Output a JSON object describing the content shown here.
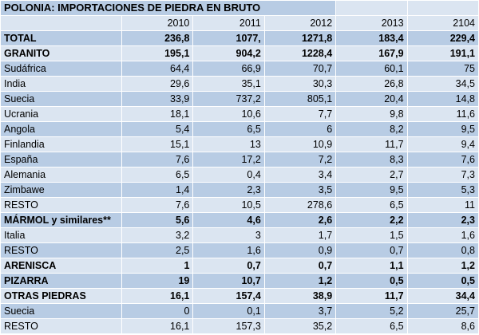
{
  "title": "POLONIA: IMPORTACIONES DE PIEDRA EN BRUTO",
  "columns": [
    "2010",
    "2011",
    "2012",
    "2013",
    "2104"
  ],
  "rows": [
    {
      "label": "TOTAL",
      "bold": true,
      "values": [
        "236,8",
        "1077,",
        "1271,8",
        "183,4",
        "229,4"
      ]
    },
    {
      "label": "GRANITO",
      "bold": true,
      "values": [
        "195,1",
        "904,2",
        "1228,4",
        "167,9",
        "191,1"
      ]
    },
    {
      "label": "Sudáfrica",
      "bold": false,
      "values": [
        "64,4",
        "66,9",
        "70,7",
        "60,1",
        "75"
      ]
    },
    {
      "label": "India",
      "bold": false,
      "values": [
        "29,6",
        "35,1",
        "30,3",
        "26,8",
        "34,5"
      ]
    },
    {
      "label": "Suecia",
      "bold": false,
      "values": [
        "33,9",
        "737,2",
        "805,1",
        "20,4",
        "14,8"
      ]
    },
    {
      "label": "Ucrania",
      "bold": false,
      "values": [
        "18,1",
        "10,6",
        "7,7",
        "9,8",
        "11,6"
      ]
    },
    {
      "label": "Angola",
      "bold": false,
      "values": [
        "5,4",
        "6,5",
        "6",
        "8,2",
        "9,5"
      ]
    },
    {
      "label": "Finlandia",
      "bold": false,
      "values": [
        "15,1",
        "13",
        "10,9",
        "11,7",
        "9,4"
      ]
    },
    {
      "label": "España",
      "bold": false,
      "values": [
        "7,6",
        "17,2",
        "7,2",
        "8,3",
        "7,6"
      ]
    },
    {
      "label": "Alemania",
      "bold": false,
      "values": [
        "6,5",
        "0,4",
        "3,4",
        "2,7",
        "7,3"
      ]
    },
    {
      "label": "Zimbawe",
      "bold": false,
      "values": [
        "1,4",
        "2,3",
        "3,5",
        "9,5",
        "5,3"
      ]
    },
    {
      "label": "RESTO",
      "bold": false,
      "values": [
        "7,6",
        "10,5",
        "278,6",
        "6,5",
        "11"
      ]
    },
    {
      "label": "MÁRMOL y similares**",
      "bold": true,
      "values": [
        "5,6",
        "4,6",
        "2,6",
        "2,2",
        "2,3"
      ]
    },
    {
      "label": "Italia",
      "bold": false,
      "values": [
        "3,2",
        "3",
        "1,7",
        "1,5",
        "1,6"
      ]
    },
    {
      "label": "RESTO",
      "bold": false,
      "values": [
        "2,5",
        "1,6",
        "0,9",
        "0,7",
        "0,8"
      ]
    },
    {
      "label": "ARENISCA",
      "bold": true,
      "values": [
        "1",
        "0,7",
        "0,7",
        "1,1",
        "1,2"
      ]
    },
    {
      "label": "PIZARRA",
      "bold": true,
      "values": [
        "19",
        "10,7",
        "1,2",
        "0,5",
        "0,5"
      ]
    },
    {
      "label": "OTRAS PIEDRAS",
      "bold": true,
      "values": [
        "16,1",
        "157,4",
        "38,9",
        "11,7",
        "34,4"
      ]
    },
    {
      "label": "Suecia",
      "bold": false,
      "values": [
        "0",
        "0,1",
        "3,7",
        "5,2",
        "25,7"
      ]
    },
    {
      "label": "RESTO",
      "bold": false,
      "values": [
        "16,1",
        "157,3",
        "35,2",
        "6,5",
        "8,6"
      ]
    }
  ],
  "colors": {
    "band_dark": "#b8cce4",
    "band_light": "#dbe5f1"
  }
}
